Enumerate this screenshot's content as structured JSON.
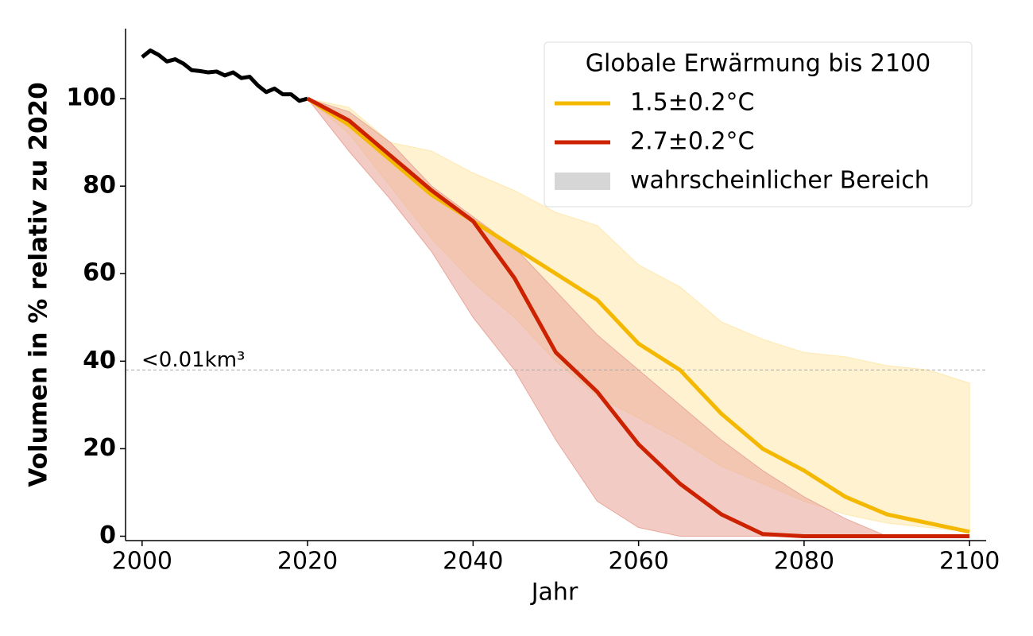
{
  "chart_data": {
    "type": "line",
    "x_label": "Jahr",
    "y_label": "Volumen in % relativ zu 2020",
    "xlim": [
      1998,
      2102
    ],
    "ylim": [
      -1,
      116
    ],
    "xticks": [
      2000,
      2020,
      2040,
      2060,
      2080,
      2100
    ],
    "yticks": [
      0,
      20,
      40,
      60,
      80,
      100
    ],
    "history": {
      "color": "#000000",
      "x": [
        2000,
        2001,
        2002,
        2003,
        2004,
        2005,
        2006,
        2007,
        2008,
        2009,
        2010,
        2011,
        2012,
        2013,
        2014,
        2015,
        2016,
        2017,
        2018,
        2019,
        2020
      ],
      "values": [
        109.5,
        111,
        110,
        108.5,
        109,
        108,
        106.5,
        106.3,
        106,
        106.2,
        105.3,
        106,
        104.7,
        105,
        103,
        101.5,
        102.3,
        101,
        101,
        99.5,
        100
      ]
    },
    "x": [
      2020,
      2025,
      2030,
      2035,
      2040,
      2045,
      2050,
      2055,
      2060,
      2065,
      2070,
      2075,
      2080,
      2085,
      2090,
      2095,
      2100
    ],
    "series": [
      {
        "name": "1.5±0.2°C",
        "color": "#f5b800",
        "band_color": "#fde9b0",
        "values": [
          100,
          94,
          86,
          78,
          72,
          66,
          60,
          54,
          44,
          38,
          28,
          20,
          15,
          9,
          5,
          3,
          1
        ],
        "lower": [
          100,
          92,
          80,
          68,
          58,
          50,
          40,
          32,
          27,
          22,
          16,
          12,
          8,
          5,
          3,
          2,
          1
        ],
        "upper": [
          100,
          98,
          90,
          88,
          83,
          79,
          74,
          71,
          62,
          57,
          49,
          45,
          42,
          41,
          39,
          38,
          35
        ]
      },
      {
        "name": "2.7±0.2°C",
        "color": "#cc2200",
        "band_color": "#e9a89c",
        "values": [
          100,
          95,
          87,
          79,
          72,
          59,
          42,
          33,
          21,
          12,
          5,
          0.5,
          0,
          0,
          0,
          0,
          0
        ],
        "lower": [
          100,
          88,
          77,
          65,
          50,
          38,
          22,
          8,
          2,
          0,
          0,
          0,
          0,
          0,
          0,
          0,
          0
        ],
        "upper": [
          100,
          97,
          90,
          80,
          73,
          66,
          56,
          46,
          38,
          30,
          22,
          15,
          9,
          4,
          0,
          0,
          0
        ]
      }
    ],
    "legend_title": "Globale Erwärmung bis 2100",
    "band_label": "wahrscheinlicher Bereich",
    "band_legend_color": "#d6d6d6",
    "legend_position": "upper right",
    "reference_line": {
      "value": 38,
      "label": "<0.01km³",
      "color": "#aaaaaa"
    }
  }
}
